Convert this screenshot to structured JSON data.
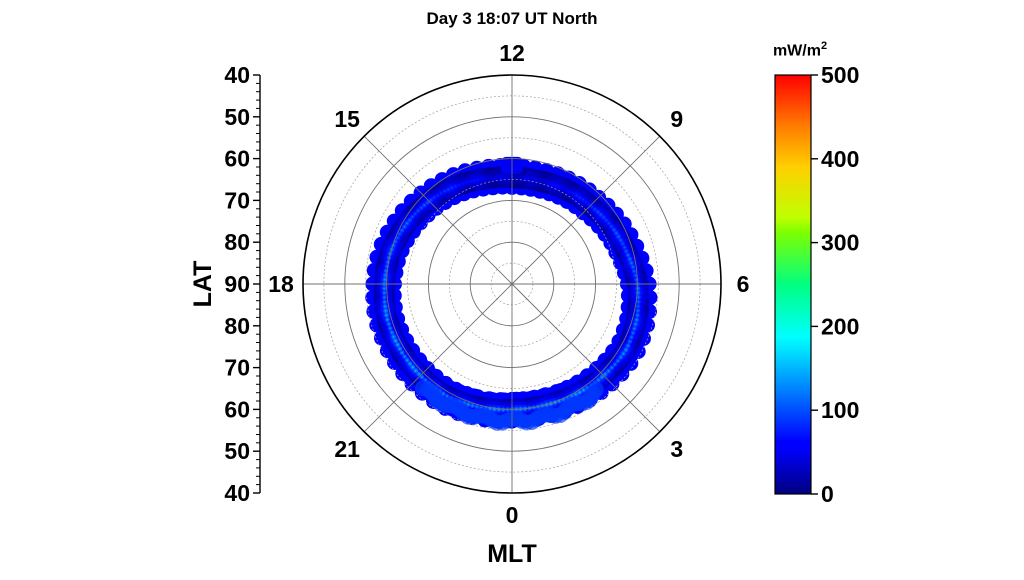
{
  "chart_data": {
    "type": "polar-heatmap",
    "title": "Day 3 18:07 UT North",
    "hemisphere": "North",
    "radial_axis": {
      "label": "LAT",
      "range": [
        40,
        90
      ],
      "ticks": [
        40,
        50,
        60,
        70,
        80,
        90
      ],
      "ring_step": 5,
      "upper_tick_labels": [
        "40",
        "50",
        "60",
        "70",
        "80",
        "90"
      ],
      "lower_tick_labels": [
        "80",
        "70",
        "60",
        "50",
        "40"
      ]
    },
    "angular_axis": {
      "label": "MLT",
      "ticks": [
        {
          "mlt": 12,
          "label": "12"
        },
        {
          "mlt": 9,
          "label": "9"
        },
        {
          "mlt": 6,
          "label": "6"
        },
        {
          "mlt": 3,
          "label": "3"
        },
        {
          "mlt": 0,
          "label": "0"
        },
        {
          "mlt": 21,
          "label": "21"
        },
        {
          "mlt": 18,
          "label": "18"
        },
        {
          "mlt": 15,
          "label": "15"
        }
      ],
      "orientation": "12 MLT at top, 6 MLT right, 18 MLT left, 0 MLT bottom"
    },
    "colorbar": {
      "unit": "mW/m",
      "unit_sup": "2",
      "range": [
        0,
        500
      ],
      "ticks": [
        0,
        100,
        200,
        300,
        400,
        500
      ],
      "tick_labels": [
        "0",
        "100",
        "200",
        "300",
        "400",
        "500"
      ],
      "colormap": "jet"
    },
    "auroral_oval": {
      "description": "Auroral energy flux oval; equatorward edge ~56-60 LAT, dayside thinner",
      "samples": [
        {
          "mlt": 12,
          "lat_center": 64.5,
          "peak": 40
        },
        {
          "mlt": 11,
          "lat_center": 64.5,
          "peak": 55
        },
        {
          "mlt": 10,
          "lat_center": 64,
          "peak": 70
        },
        {
          "mlt": 9,
          "lat_center": 63.5,
          "peak": 95
        },
        {
          "mlt": 8,
          "lat_center": 62.5,
          "peak": 110
        },
        {
          "mlt": 7,
          "lat_center": 61.5,
          "peak": 120
        },
        {
          "mlt": 6,
          "lat_center": 60,
          "peak": 125
        },
        {
          "mlt": 5,
          "lat_center": 59,
          "peak": 130
        },
        {
          "mlt": 4,
          "lat_center": 58.5,
          "peak": 135
        },
        {
          "mlt": 3,
          "lat_center": 59,
          "peak": 140
        },
        {
          "mlt": 2,
          "lat_center": 59.5,
          "peak": 150
        },
        {
          "mlt": 1,
          "lat_center": 60,
          "peak": 150
        },
        {
          "mlt": 0,
          "lat_center": 60,
          "peak": 145
        },
        {
          "mlt": 23,
          "lat_center": 59.5,
          "peak": 140
        },
        {
          "mlt": 22,
          "lat_center": 59,
          "peak": 140
        },
        {
          "mlt": 21,
          "lat_center": 59,
          "peak": 150
        },
        {
          "mlt": 20,
          "lat_center": 59,
          "peak": 150
        },
        {
          "mlt": 19,
          "lat_center": 59,
          "peak": 145
        },
        {
          "mlt": 18,
          "lat_center": 59.5,
          "peak": 140
        },
        {
          "mlt": 17,
          "lat_center": 60,
          "peak": 130
        },
        {
          "mlt": 16,
          "lat_center": 61,
          "peak": 120
        },
        {
          "mlt": 15,
          "lat_center": 62,
          "peak": 105
        },
        {
          "mlt": 14,
          "lat_center": 63,
          "peak": 85
        },
        {
          "mlt": 13,
          "lat_center": 64,
          "peak": 60
        }
      ]
    },
    "grid": true
  }
}
